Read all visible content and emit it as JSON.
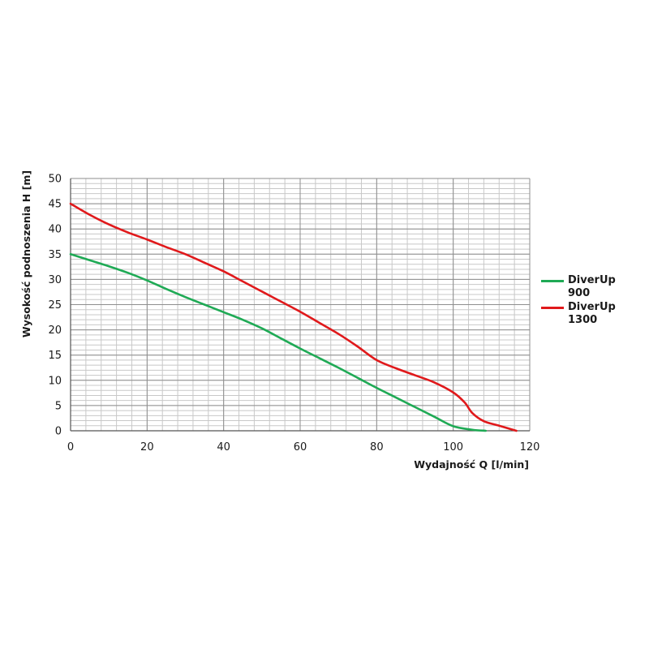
{
  "chart_data": {
    "type": "line",
    "xlabel": "Wydajność Q [l/min]",
    "ylabel": "Wysokość podnoszenia H [m]",
    "xlim": [
      0,
      120
    ],
    "ylim": [
      0,
      50
    ],
    "x_ticks": [
      "0",
      "20",
      "40",
      "60",
      "80",
      "100",
      "120"
    ],
    "y_ticks": [
      "0",
      "5",
      "10",
      "15",
      "20",
      "25",
      "30",
      "35",
      "40",
      "45",
      "50"
    ],
    "grid": true,
    "legend_position": "right",
    "series": [
      {
        "name": "DiverUp 900",
        "color": "#1faa55",
        "x": [
          0,
          5,
          10,
          15,
          20,
          25,
          30,
          35,
          40,
          45,
          50,
          55,
          60,
          65,
          70,
          75,
          80,
          85,
          90,
          95,
          100,
          105,
          108.5
        ],
        "y": [
          35,
          33.8,
          32.6,
          31.3,
          29.8,
          28.1,
          26.5,
          25.0,
          23.5,
          22.0,
          20.3,
          18.3,
          16.3,
          14.4,
          12.5,
          10.5,
          8.5,
          6.6,
          4.7,
          2.8,
          0.9,
          0.2,
          0
        ]
      },
      {
        "name": "DiverUp 1300",
        "color": "#e0191b",
        "x": [
          0,
          5,
          10,
          15,
          20,
          25,
          30,
          35,
          40,
          45,
          50,
          55,
          60,
          65,
          70,
          75,
          80,
          85,
          90,
          95,
          100,
          103,
          105,
          108,
          112,
          116.5
        ],
        "y": [
          45,
          42.8,
          40.9,
          39.3,
          37.9,
          36.4,
          35.0,
          33.3,
          31.6,
          29.6,
          27.6,
          25.6,
          23.6,
          21.4,
          19.2,
          16.7,
          14.0,
          12.4,
          11.0,
          9.6,
          7.6,
          5.6,
          3.5,
          1.9,
          1.0,
          0
        ]
      }
    ]
  }
}
